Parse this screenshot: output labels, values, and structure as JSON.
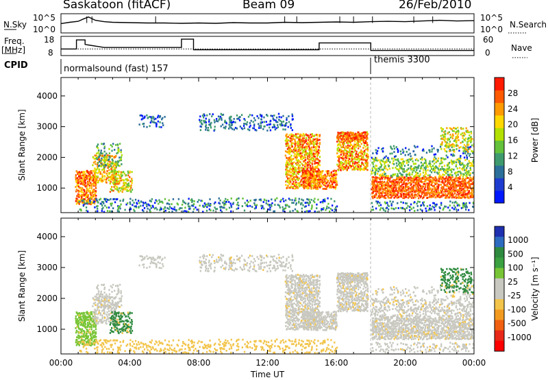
{
  "header": {
    "station": "Saskatoon (fitACF)",
    "beam": "Beam 09",
    "date": "26/Feb/2010"
  },
  "nsky_panel": {
    "left_label": "N.Sky",
    "left_ticks": [
      "10^5",
      "10^0"
    ],
    "right_label": "N.Search",
    "right_ticks": [
      "10^5",
      "10^0"
    ]
  },
  "freq_panel": {
    "left_label_1": "Freq.",
    "left_label_2": "[MHz]",
    "left_ticks": [
      "18",
      "8"
    ],
    "right_label": "Nave",
    "right_ticks": [
      "60",
      "0"
    ]
  },
  "cpid_panel": {
    "label": "CPID",
    "mode_1": "normalsound (fast) 157",
    "mode_2": "themis 3300"
  },
  "chart_data": [
    {
      "type": "line",
      "panel": "N.Sky / N.Search",
      "x_unit_hours": true,
      "xlim": [
        0,
        24
      ],
      "series": [
        {
          "name": "N.Sky",
          "x": [
            0,
            0.5,
            1.0,
            1.3,
            1.6,
            2.0,
            2.5,
            3,
            4,
            5,
            6,
            7,
            8,
            9,
            10,
            11,
            12,
            13,
            14,
            15,
            16,
            17,
            18,
            19,
            20,
            21,
            22,
            23,
            24
          ],
          "values": [
            2.2,
            2.6,
            2.9,
            3.6,
            4.2,
            3.2,
            2.8,
            2.6,
            2.5,
            2.4,
            2.4,
            2.3,
            2.4,
            2.3,
            2.5,
            2.4,
            2.4,
            2.6,
            2.5,
            2.6,
            2.7,
            2.6,
            2.8,
            2.9,
            2.8,
            3.0,
            3.2,
            3.0,
            3.1
          ]
        },
        {
          "name": "N.Search",
          "x": [
            0,
            24
          ],
          "values": [
            0,
            0
          ]
        }
      ]
    },
    {
      "type": "line",
      "panel": "Freq. / Nave",
      "xlim": [
        0,
        24
      ],
      "series": [
        {
          "name": "Freq. [MHz]",
          "x": [
            0,
            0.9,
            0.9,
            1.4,
            1.4,
            2.5,
            7.0,
            7.0,
            7.7,
            7.7,
            15.0,
            15.0,
            18.0,
            18.0,
            24
          ],
          "values": [
            11,
            11,
            17,
            17,
            14,
            12,
            12,
            17.5,
            17.5,
            10.5,
            10.5,
            15,
            15,
            10,
            10
          ]
        },
        {
          "name": "Nave",
          "x": [
            0,
            24
          ],
          "values": [
            18,
            18
          ]
        }
      ]
    },
    {
      "type": "heatmap",
      "panel": "Power",
      "xlabel": "Time UT",
      "ylabel": "Slant Range [km]",
      "xlim": [
        0,
        24
      ],
      "ylim": [
        200,
        4600
      ],
      "x_ticks": [
        "00:00",
        "04:00",
        "08:00",
        "12:00",
        "16:00",
        "20:00",
        "00:00"
      ],
      "y_ticks": [
        1000,
        2000,
        3000,
        4000
      ],
      "colorbar": {
        "label": "Power [dB]",
        "ticks": [
          4,
          8,
          12,
          16,
          20,
          24,
          28
        ]
      }
    },
    {
      "type": "heatmap",
      "panel": "Velocity",
      "xlabel": "Time UT",
      "ylabel": "Slant Range [km]",
      "xlim": [
        0,
        24
      ],
      "ylim": [
        200,
        4600
      ],
      "x_ticks": [
        "00:00",
        "04:00",
        "08:00",
        "12:00",
        "16:00",
        "20:00",
        "00:00"
      ],
      "y_ticks": [
        1000,
        2000,
        3000,
        4000
      ],
      "colorbar": {
        "label": "Velocity [m s^-1]",
        "ticks": [
          1000,
          500,
          100,
          25,
          -25,
          -100,
          -500,
          -1000
        ]
      }
    }
  ],
  "axis": {
    "xlabel": "Time UT"
  }
}
